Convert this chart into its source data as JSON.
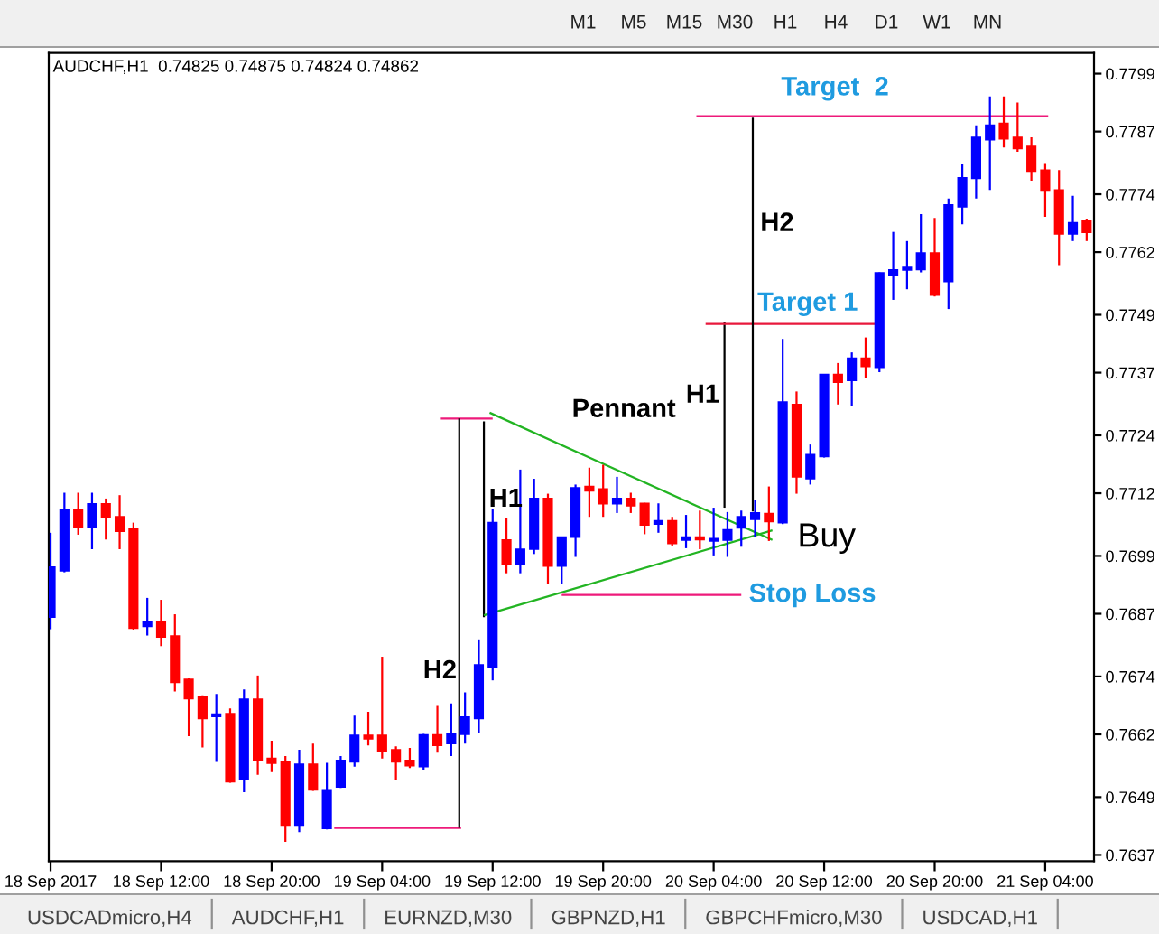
{
  "chart_data": {
    "type": "candlestick",
    "title": "AUDCHF,H1  0.74825 0.74875 0.74824 0.74862",
    "x": [
      "2017-09-18T04:00",
      "2017-09-18T05:00",
      "2017-09-18T06:00",
      "2017-09-18T07:00",
      "2017-09-18T08:00",
      "2017-09-18T09:00",
      "2017-09-18T10:00",
      "2017-09-18T11:00",
      "2017-09-18T12:00",
      "2017-09-18T13:00",
      "2017-09-18T14:00",
      "2017-09-18T15:00",
      "2017-09-18T16:00",
      "2017-09-18T17:00",
      "2017-09-18T18:00",
      "2017-09-18T19:00",
      "2017-09-18T20:00",
      "2017-09-18T21:00",
      "2017-09-18T22:00",
      "2017-09-18T23:00",
      "2017-09-19T00:00",
      "2017-09-19T01:00",
      "2017-09-19T02:00",
      "2017-09-19T03:00",
      "2017-09-19T04:00",
      "2017-09-19T05:00",
      "2017-09-19T06:00",
      "2017-09-19T07:00",
      "2017-09-19T08:00",
      "2017-09-19T09:00",
      "2017-09-19T10:00",
      "2017-09-19T11:00",
      "2017-09-19T12:00",
      "2017-09-19T13:00",
      "2017-09-19T14:00",
      "2017-09-19T15:00",
      "2017-09-19T16:00",
      "2017-09-19T17:00",
      "2017-09-19T18:00",
      "2017-09-19T19:00",
      "2017-09-19T20:00",
      "2017-09-19T21:00",
      "2017-09-19T22:00",
      "2017-09-19T23:00",
      "2017-09-20T00:00",
      "2017-09-20T01:00",
      "2017-09-20T02:00",
      "2017-09-20T03:00",
      "2017-09-20T04:00",
      "2017-09-20T05:00",
      "2017-09-20T06:00",
      "2017-09-20T07:00",
      "2017-09-20T08:00",
      "2017-09-20T09:00",
      "2017-09-20T10:00",
      "2017-09-20T11:00",
      "2017-09-20T12:00",
      "2017-09-20T13:00",
      "2017-09-20T14:00",
      "2017-09-20T15:00",
      "2017-09-20T16:00",
      "2017-09-20T17:00",
      "2017-09-20T18:00",
      "2017-09-20T19:00",
      "2017-09-20T20:00",
      "2017-09-20T21:00",
      "2017-09-20T22:00",
      "2017-09-20T23:00",
      "2017-09-21T00:00",
      "2017-09-21T01:00",
      "2017-09-21T02:00",
      "2017-09-21T03:00",
      "2017-09-21T04:00",
      "2017-09-21T05:00",
      "2017-09-21T06:00",
      "2017-09-21T07:00"
    ],
    "ohlc": [
      [
        0.76863,
        0.77038,
        0.76838,
        0.76967
      ],
      [
        0.76959,
        0.77121,
        0.76956,
        0.77086
      ],
      [
        0.77086,
        0.77121,
        0.77034,
        0.7705
      ],
      [
        0.7705,
        0.77121,
        0.77004,
        0.77098
      ],
      [
        0.77098,
        0.77109,
        0.77024,
        0.77069
      ],
      [
        0.77071,
        0.77116,
        0.77004,
        0.77041
      ],
      [
        0.77046,
        0.77059,
        0.76837,
        0.7684
      ],
      [
        0.76844,
        0.76903,
        0.76825,
        0.76854
      ],
      [
        0.76854,
        0.76899,
        0.76803,
        0.76822
      ],
      [
        0.76824,
        0.76869,
        0.76709,
        0.76728
      ],
      [
        0.76734,
        0.76736,
        0.76616,
        0.76694
      ],
      [
        0.76698,
        0.76701,
        0.76593,
        0.76653
      ],
      [
        0.76657,
        0.76704,
        0.76563,
        0.76662
      ],
      [
        0.76663,
        0.76674,
        0.7652,
        0.76522
      ],
      [
        0.76526,
        0.76713,
        0.765,
        0.76693
      ],
      [
        0.76693,
        0.76742,
        0.76536,
        0.76567
      ],
      [
        0.7657,
        0.76607,
        0.76542,
        0.7656
      ],
      [
        0.76562,
        0.76575,
        0.76397,
        0.76432
      ],
      [
        0.76432,
        0.76588,
        0.76417,
        0.76558
      ],
      [
        0.76558,
        0.76601,
        0.76503,
        0.76505
      ],
      [
        0.76425,
        0.76561,
        0.76423,
        0.76503
      ],
      [
        0.76511,
        0.76575,
        0.76509,
        0.76566
      ],
      [
        0.76563,
        0.76659,
        0.76553,
        0.76618
      ],
      [
        0.76618,
        0.76667,
        0.76597,
        0.76611
      ],
      [
        0.76618,
        0.76781,
        0.7657,
        0.76586
      ],
      [
        0.76588,
        0.76595,
        0.76526,
        0.76563
      ],
      [
        0.76566,
        0.76592,
        0.7655,
        0.76555
      ],
      [
        0.76553,
        0.76621,
        0.76547,
        0.76619
      ],
      [
        0.76619,
        0.76679,
        0.76582,
        0.76597
      ],
      [
        0.76601,
        0.76684,
        0.76575,
        0.76622
      ],
      [
        0.7662,
        0.76707,
        0.76601,
        0.76656
      ],
      [
        0.76653,
        0.76817,
        0.76623,
        0.76764
      ],
      [
        0.76759,
        0.77088,
        0.76732,
        0.77059
      ],
      [
        0.77023,
        0.77069,
        0.76954,
        0.76972
      ],
      [
        0.76972,
        0.77169,
        0.76954,
        0.77004
      ],
      [
        0.77004,
        0.7715,
        0.76994,
        0.77109
      ],
      [
        0.77109,
        0.77119,
        0.76932,
        0.76969
      ],
      [
        0.76969,
        0.7703,
        0.76932,
        0.77029
      ],
      [
        0.77029,
        0.77138,
        0.76988,
        0.77131
      ],
      [
        0.77134,
        0.77173,
        0.77071,
        0.77125
      ],
      [
        0.77129,
        0.77179,
        0.77071,
        0.77098
      ],
      [
        0.77098,
        0.77154,
        0.77079,
        0.77109
      ],
      [
        0.77109,
        0.77121,
        0.77079,
        0.77094
      ],
      [
        0.77099,
        0.771,
        0.77035,
        0.77054
      ],
      [
        0.77056,
        0.77099,
        0.77038,
        0.77063
      ],
      [
        0.77063,
        0.77071,
        0.7701,
        0.77016
      ],
      [
        0.77023,
        0.77075,
        0.77006,
        0.77029
      ],
      [
        0.77029,
        0.77084,
        0.77004,
        0.77024
      ],
      [
        0.77021,
        0.7709,
        0.76991,
        0.77026
      ],
      [
        0.77023,
        0.77081,
        0.76988,
        0.77044
      ],
      [
        0.77048,
        0.77084,
        0.77009,
        0.77071
      ],
      [
        0.77066,
        0.77106,
        0.77029,
        0.77079
      ],
      [
        0.77078,
        0.77134,
        0.77021,
        0.77061
      ],
      [
        0.77059,
        0.7744,
        0.77056,
        0.77309
      ],
      [
        0.77304,
        0.77331,
        0.77119,
        0.77154
      ],
      [
        0.7715,
        0.77221,
        0.77138,
        0.772
      ],
      [
        0.77196,
        0.77367,
        0.77194,
        0.77366
      ],
      [
        0.77366,
        0.7739,
        0.77304,
        0.7735
      ],
      [
        0.77354,
        0.77412,
        0.773,
        0.774
      ],
      [
        0.774,
        0.77443,
        0.77359,
        0.77383
      ],
      [
        0.77381,
        0.77578,
        0.77371,
        0.77577
      ],
      [
        0.77571,
        0.77662,
        0.77521,
        0.77583
      ],
      [
        0.77583,
        0.77643,
        0.77543,
        0.77588
      ],
      [
        0.77584,
        0.77699,
        0.77578,
        0.77618
      ],
      [
        0.77618,
        0.77691,
        0.77528,
        0.77531
      ],
      [
        0.77559,
        0.77731,
        0.77502,
        0.77718
      ],
      [
        0.77714,
        0.77802,
        0.77678,
        0.77774
      ],
      [
        0.77773,
        0.77883,
        0.77731,
        0.77858
      ],
      [
        0.77853,
        0.77943,
        0.77749,
        0.77883
      ],
      [
        0.77887,
        0.77943,
        0.77837,
        0.77855
      ],
      [
        0.77858,
        0.7793,
        0.77828,
        0.77835
      ],
      [
        0.77839,
        0.77858,
        0.77768,
        0.77788
      ],
      [
        0.7779,
        0.77803,
        0.77693,
        0.77747
      ],
      [
        0.77749,
        0.7779,
        0.77593,
        0.77658
      ],
      [
        0.77658,
        0.77737,
        0.77643,
        0.77681
      ],
      [
        0.77684,
        0.77689,
        0.77643,
        0.77661
      ]
    ],
    "colors": [
      "#0000ff",
      "#0000ff",
      "#ff0000",
      "#0000ff",
      "#ff0000",
      "#ff0000",
      "#ff0000",
      "#0000ff",
      "#ff0000",
      "#ff0000",
      "#ff0000",
      "#ff0000",
      "#0000ff",
      "#ff0000",
      "#0000ff",
      "#ff0000",
      "#ff0000",
      "#ff0000",
      "#0000ff",
      "#ff0000",
      "#0000ff",
      "#0000ff",
      "#0000ff",
      "#ff0000",
      "#ff0000",
      "#ff0000",
      "#ff0000",
      "#0000ff",
      "#ff0000",
      "#0000ff",
      "#0000ff",
      "#0000ff",
      "#0000ff",
      "#ff0000",
      "#0000ff",
      "#0000ff",
      "#ff0000",
      "#0000ff",
      "#0000ff",
      "#ff0000",
      "#ff0000",
      "#0000ff",
      "#ff0000",
      "#ff0000",
      "#0000ff",
      "#ff0000",
      "#0000ff",
      "#ff0000",
      "#0000ff",
      "#0000ff",
      "#0000ff",
      "#0000ff",
      "#ff0000",
      "#0000ff",
      "#ff0000",
      "#0000ff",
      "#0000ff",
      "#ff0000",
      "#0000ff",
      "#ff0000",
      "#0000ff",
      "#0000ff",
      "#0000ff",
      "#0000ff",
      "#ff0000",
      "#0000ff",
      "#0000ff",
      "#0000ff",
      "#0000ff",
      "#ff0000",
      "#ff0000",
      "#ff0000",
      "#ff0000",
      "#ff0000",
      "#0000ff",
      "#ff0000"
    ],
    "series": [
      {
        "type": "line",
        "x": [
          "2017-09-19T00:32",
          "2017-09-19T09:43"
        ],
        "values": [
          0.76426,
          0.76426
        ],
        "color": "#ee1a7a"
      },
      {
        "type": "line",
        "x": [
          "2017-09-19T08:15",
          "2017-09-19T12:00"
        ],
        "values": [
          0.77275,
          0.77275
        ],
        "color": "#ee1a7a"
      },
      {
        "type": "line",
        "x": [
          "2017-09-19T09:35",
          "2017-09-19T09:35"
        ],
        "values": [
          0.76426,
          0.77275
        ],
        "color": "#000000"
      },
      {
        "type": "line",
        "x": [
          "2017-09-19T11:22",
          "2017-09-19T11:22"
        ],
        "values": [
          0.76863,
          0.77269
        ],
        "color": "#000000"
      },
      {
        "type": "line",
        "x": [
          "2017-09-19T11:47",
          "2017-09-20T08:15"
        ],
        "values": [
          0.77287,
          0.77023
        ],
        "color": "#22b422"
      },
      {
        "type": "line",
        "x": [
          "2017-09-19T11:22",
          "2017-09-20T08:15"
        ],
        "values": [
          0.76867,
          0.77043
        ],
        "color": "#22b422"
      },
      {
        "type": "line",
        "x": [
          "2017-09-19T17:00",
          "2017-09-20T06:00"
        ],
        "values": [
          0.76909,
          0.76909
        ],
        "color": "#ee1a7a"
      },
      {
        "type": "line",
        "x": [
          "2017-09-20T04:47",
          "2017-09-20T04:47"
        ],
        "values": [
          0.7709,
          0.77475
        ],
        "color": "#000000"
      },
      {
        "type": "line",
        "x": [
          "2017-09-20T03:25",
          "2017-09-20T15:55"
        ],
        "values": [
          0.77471,
          0.77471
        ],
        "color": "#e8183c"
      },
      {
        "type": "line",
        "x": [
          "2017-09-20T06:50",
          "2017-09-20T06:50"
        ],
        "values": [
          0.77082,
          0.77899
        ],
        "color": "#000000"
      },
      {
        "type": "line",
        "x": [
          "2017-09-20T02:45",
          "2017-09-21T04:13"
        ],
        "values": [
          0.77902,
          0.77902
        ],
        "color": "#ee1a7a"
      }
    ],
    "xlim": [
      "2017-09-18T03:52",
      "2017-09-21T07:32"
    ],
    "xticks": [
      {
        "value": "2017-09-18T04:00",
        "label": "18 Sep 2017"
      },
      {
        "value": "2017-09-18T12:00",
        "label": "18 Sep 12:00"
      },
      {
        "value": "2017-09-18T20:00",
        "label": "18 Sep 20:00"
      },
      {
        "value": "2017-09-19T04:00",
        "label": "19 Sep 04:00"
      },
      {
        "value": "2017-09-19T12:00",
        "label": "19 Sep 12:00"
      },
      {
        "value": "2017-09-19T20:00",
        "label": "19 Sep 20:00"
      },
      {
        "value": "2017-09-20T04:00",
        "label": "20 Sep 04:00"
      },
      {
        "value": "2017-09-20T12:00",
        "label": "20 Sep 12:00"
      },
      {
        "value": "2017-09-20T20:00",
        "label": "20 Sep 20:00"
      },
      {
        "value": "2017-09-21T04:00",
        "label": "21 Sep 04:00"
      }
    ],
    "ylim": [
      0.76357,
      0.78033
    ],
    "yticks": [
      0.7799,
      0.7787,
      0.7774,
      0.7762,
      0.7749,
      0.7737,
      0.7724,
      0.7712,
      0.7699,
      0.7687,
      0.7674,
      0.7662,
      0.7649,
      0.7637
    ],
    "annotations": [
      {
        "text": "Target  2",
        "x": "2017-09-20T08:53",
        "y": 0.77902
      },
      {
        "text": "H2",
        "x": "2017-09-20T06:50",
        "y": 0.77678
      },
      {
        "text": "Target 1",
        "x": "2017-09-20T07:10",
        "y": 0.77471
      },
      {
        "text": "H1",
        "x": "2017-09-20T04:47",
        "y": 0.77322
      },
      {
        "text": "Pennant",
        "x": "2017-09-19T21:30",
        "y": 0.77162
      },
      {
        "text": "H1",
        "x": "2017-09-19T11:22",
        "y": 0.77106
      },
      {
        "text": "H2",
        "x": "2017-09-19T09:35",
        "y": 0.7675
      },
      {
        "text": "Buy",
        "x": "2017-09-20T08:15",
        "y": 0.77043
      },
      {
        "text": "Stop Loss",
        "x": "2017-09-20T06:00",
        "y": 0.76909
      },
      "M1 M5 M15 M30 H1 H4 D1 W1 MN",
      "USDCADmicro,H4 AUDCHF,H1 EURNZD,M30 GBPNZD,H1 GBPCHFmicro,M30 USDCAD,H1"
    ]
  }
}
